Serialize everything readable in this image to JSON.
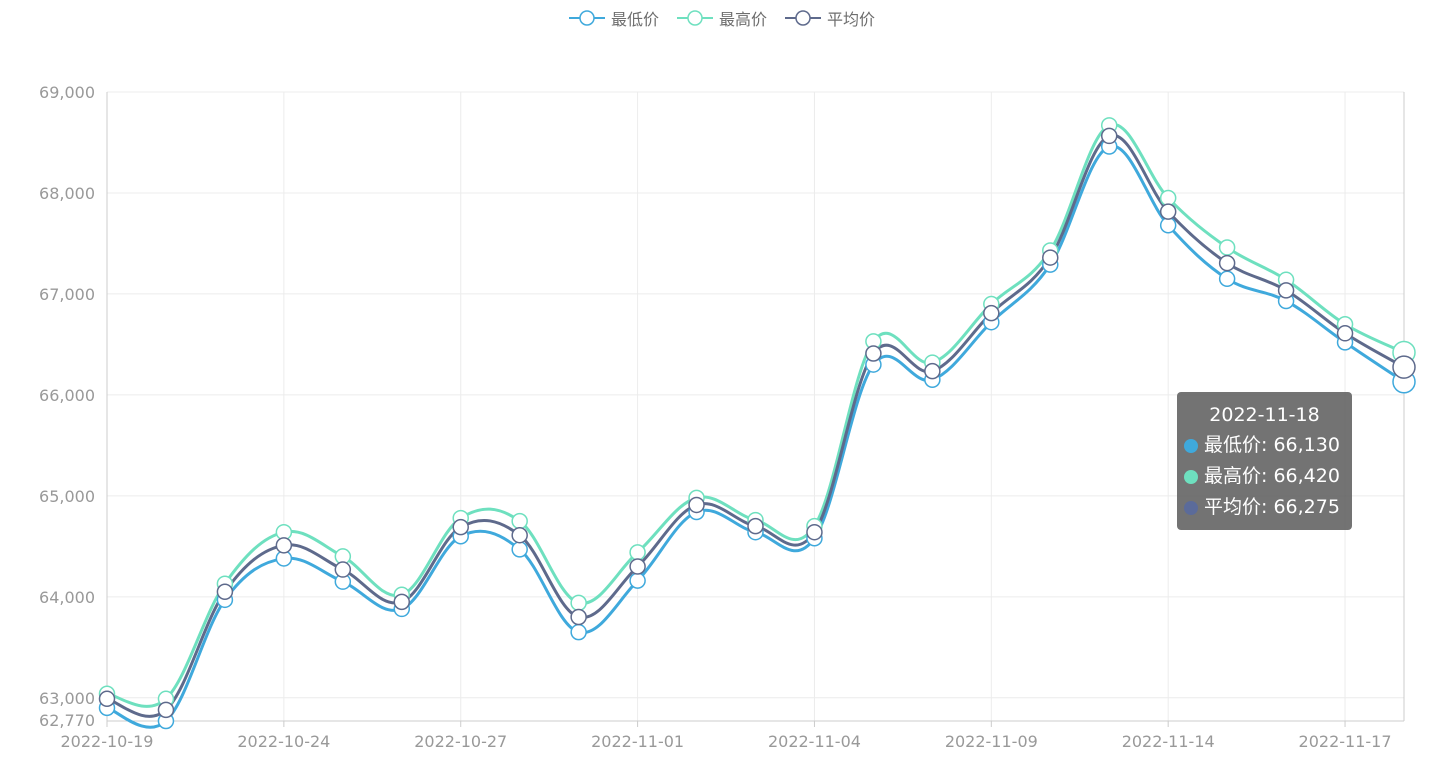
{
  "legend": [
    {
      "name": "最低价",
      "color": "#3fa9dc"
    },
    {
      "name": "最高价",
      "color": "#6ee0bf"
    },
    {
      "name": "平均价",
      "color": "#5e6a8c"
    }
  ],
  "tooltip": {
    "date": "2022-11-18",
    "rows": [
      {
        "label": "最低价: 66,130",
        "color": "#3fa9dc"
      },
      {
        "label": "最高价: 66,420",
        "color": "#6ee0bf"
      },
      {
        "label": "平均价: 66,275",
        "color": "#5b6b9a"
      }
    ]
  },
  "chart_data": {
    "type": "line",
    "smooth": true,
    "x": [
      "2022-10-19",
      "2022-10-20",
      "2022-10-21",
      "2022-10-24",
      "2022-10-25",
      "2022-10-26",
      "2022-10-27",
      "2022-10-28",
      "2022-10-31",
      "2022-11-01",
      "2022-11-02",
      "2022-11-03",
      "2022-11-04",
      "2022-11-07",
      "2022-11-08",
      "2022-11-09",
      "2022-11-10",
      "2022-11-11",
      "2022-11-14",
      "2022-11-15",
      "2022-11-16",
      "2022-11-17",
      "2022-11-18"
    ],
    "x_tick_labels": [
      "2022-10-19",
      "2022-10-24",
      "2022-10-27",
      "2022-11-01",
      "2022-11-04",
      "2022-11-09",
      "2022-11-14",
      "2022-11-17"
    ],
    "y_ticks": [
      63000,
      64000,
      65000,
      66000,
      67000,
      68000,
      69000
    ],
    "y_tick_labels": [
      "63,000",
      "64,000",
      "65,000",
      "66,000",
      "67,000",
      "68,000",
      "69,000"
    ],
    "y_min_label": "62,770",
    "ylim": [
      62770,
      69000
    ],
    "grid": true,
    "legend_position": "top-center",
    "highlight_index": 22,
    "series": [
      {
        "name": "最低价",
        "color": "#3fa9dc",
        "values": [
          62900,
          62770,
          63970,
          64380,
          64150,
          63880,
          64600,
          64470,
          63650,
          64160,
          64840,
          64640,
          64580,
          66300,
          66150,
          66720,
          67290,
          68460,
          67680,
          67150,
          66930,
          66520,
          66130
        ]
      },
      {
        "name": "最高价",
        "color": "#6ee0bf",
        "values": [
          63040,
          62990,
          64130,
          64640,
          64400,
          64020,
          64780,
          64750,
          63940,
          64440,
          64980,
          64760,
          64700,
          66530,
          66320,
          66900,
          67430,
          68670,
          67950,
          67460,
          67140,
          66700,
          66420
        ]
      },
      {
        "name": "平均价",
        "color": "#5e6a8c",
        "values": [
          62990,
          62880,
          64050,
          64510,
          64270,
          63950,
          64690,
          64610,
          63800,
          64300,
          64910,
          64700,
          64640,
          66410,
          66235,
          66810,
          67360,
          68565,
          67815,
          67305,
          67035,
          66610,
          66275
        ]
      }
    ]
  }
}
